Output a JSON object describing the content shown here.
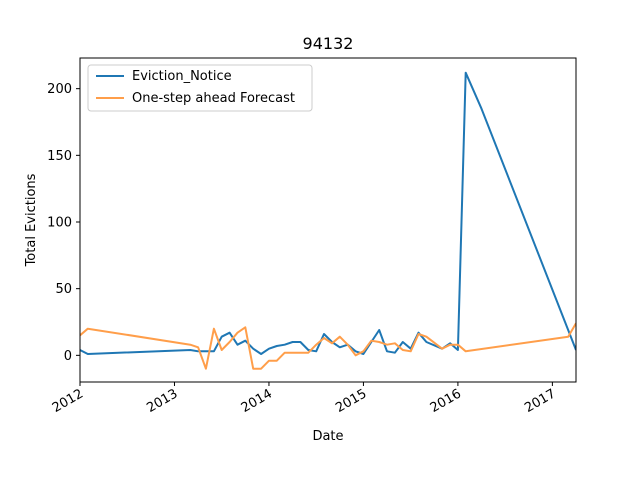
{
  "chart_data": {
    "type": "line",
    "title": "94132",
    "xlabel": "Date",
    "ylabel": "Total Evictions",
    "xlim": [
      2012.0,
      2017.25
    ],
    "ylim": [
      -20,
      223
    ],
    "grid": false,
    "legend_position": "top-left",
    "x_ticks": [
      {
        "value": 2012,
        "label": "2012"
      },
      {
        "value": 2013,
        "label": "2013"
      },
      {
        "value": 2014,
        "label": "2014"
      },
      {
        "value": 2015,
        "label": "2015"
      },
      {
        "value": 2016,
        "label": "2016"
      },
      {
        "value": 2017,
        "label": "2017"
      }
    ],
    "y_ticks": [
      {
        "value": 0,
        "label": "0"
      },
      {
        "value": 50,
        "label": "50"
      },
      {
        "value": 100,
        "label": "100"
      },
      {
        "value": 150,
        "label": "150"
      },
      {
        "value": 200,
        "label": "200"
      }
    ],
    "series": [
      {
        "name": "Eviction_Notice",
        "color": "#1f77b4",
        "x": [
          2012.0,
          2012.083,
          2013.167,
          2013.25,
          2013.333,
          2013.417,
          2013.5,
          2013.583,
          2013.667,
          2013.75,
          2013.833,
          2013.917,
          2014.0,
          2014.083,
          2014.167,
          2014.25,
          2014.333,
          2014.417,
          2014.5,
          2014.583,
          2014.667,
          2014.75,
          2014.833,
          2014.917,
          2015.0,
          2015.083,
          2015.167,
          2015.25,
          2015.333,
          2015.417,
          2015.5,
          2015.583,
          2015.667,
          2015.833,
          2015.917,
          2016.0,
          2016.083,
          2016.25,
          2017.25
        ],
        "values": [
          4,
          1,
          4,
          3,
          3,
          3,
          14,
          17,
          8,
          11,
          5,
          1,
          5,
          7,
          8,
          10,
          10,
          4,
          3,
          16,
          10,
          6,
          8,
          3,
          1,
          10,
          19,
          3,
          2,
          10,
          5,
          17,
          10,
          5,
          9,
          4,
          212,
          185,
          4
        ]
      },
      {
        "name": "One-step ahead Forecast",
        "color": "#ff9e4a",
        "x": [
          2012.0,
          2012.083,
          2013.167,
          2013.25,
          2013.333,
          2013.417,
          2013.5,
          2013.583,
          2013.667,
          2013.75,
          2013.833,
          2013.917,
          2014.0,
          2014.083,
          2014.167,
          2014.25,
          2014.333,
          2014.417,
          2014.5,
          2014.583,
          2014.667,
          2014.75,
          2014.833,
          2014.917,
          2015.0,
          2015.083,
          2015.167,
          2015.25,
          2015.333,
          2015.417,
          2015.5,
          2015.583,
          2015.667,
          2015.833,
          2015.917,
          2016.0,
          2016.083,
          2017.167,
          2017.25
        ],
        "values": [
          15,
          20,
          8,
          6,
          -10,
          20,
          4,
          10,
          17,
          21,
          -10,
          -10,
          -4,
          -4,
          2,
          2,
          2,
          2,
          8,
          13,
          9,
          14,
          8,
          0,
          3,
          11,
          10,
          8,
          9,
          4,
          3,
          16,
          14,
          5,
          8,
          8,
          3,
          14,
          24
        ]
      }
    ]
  }
}
